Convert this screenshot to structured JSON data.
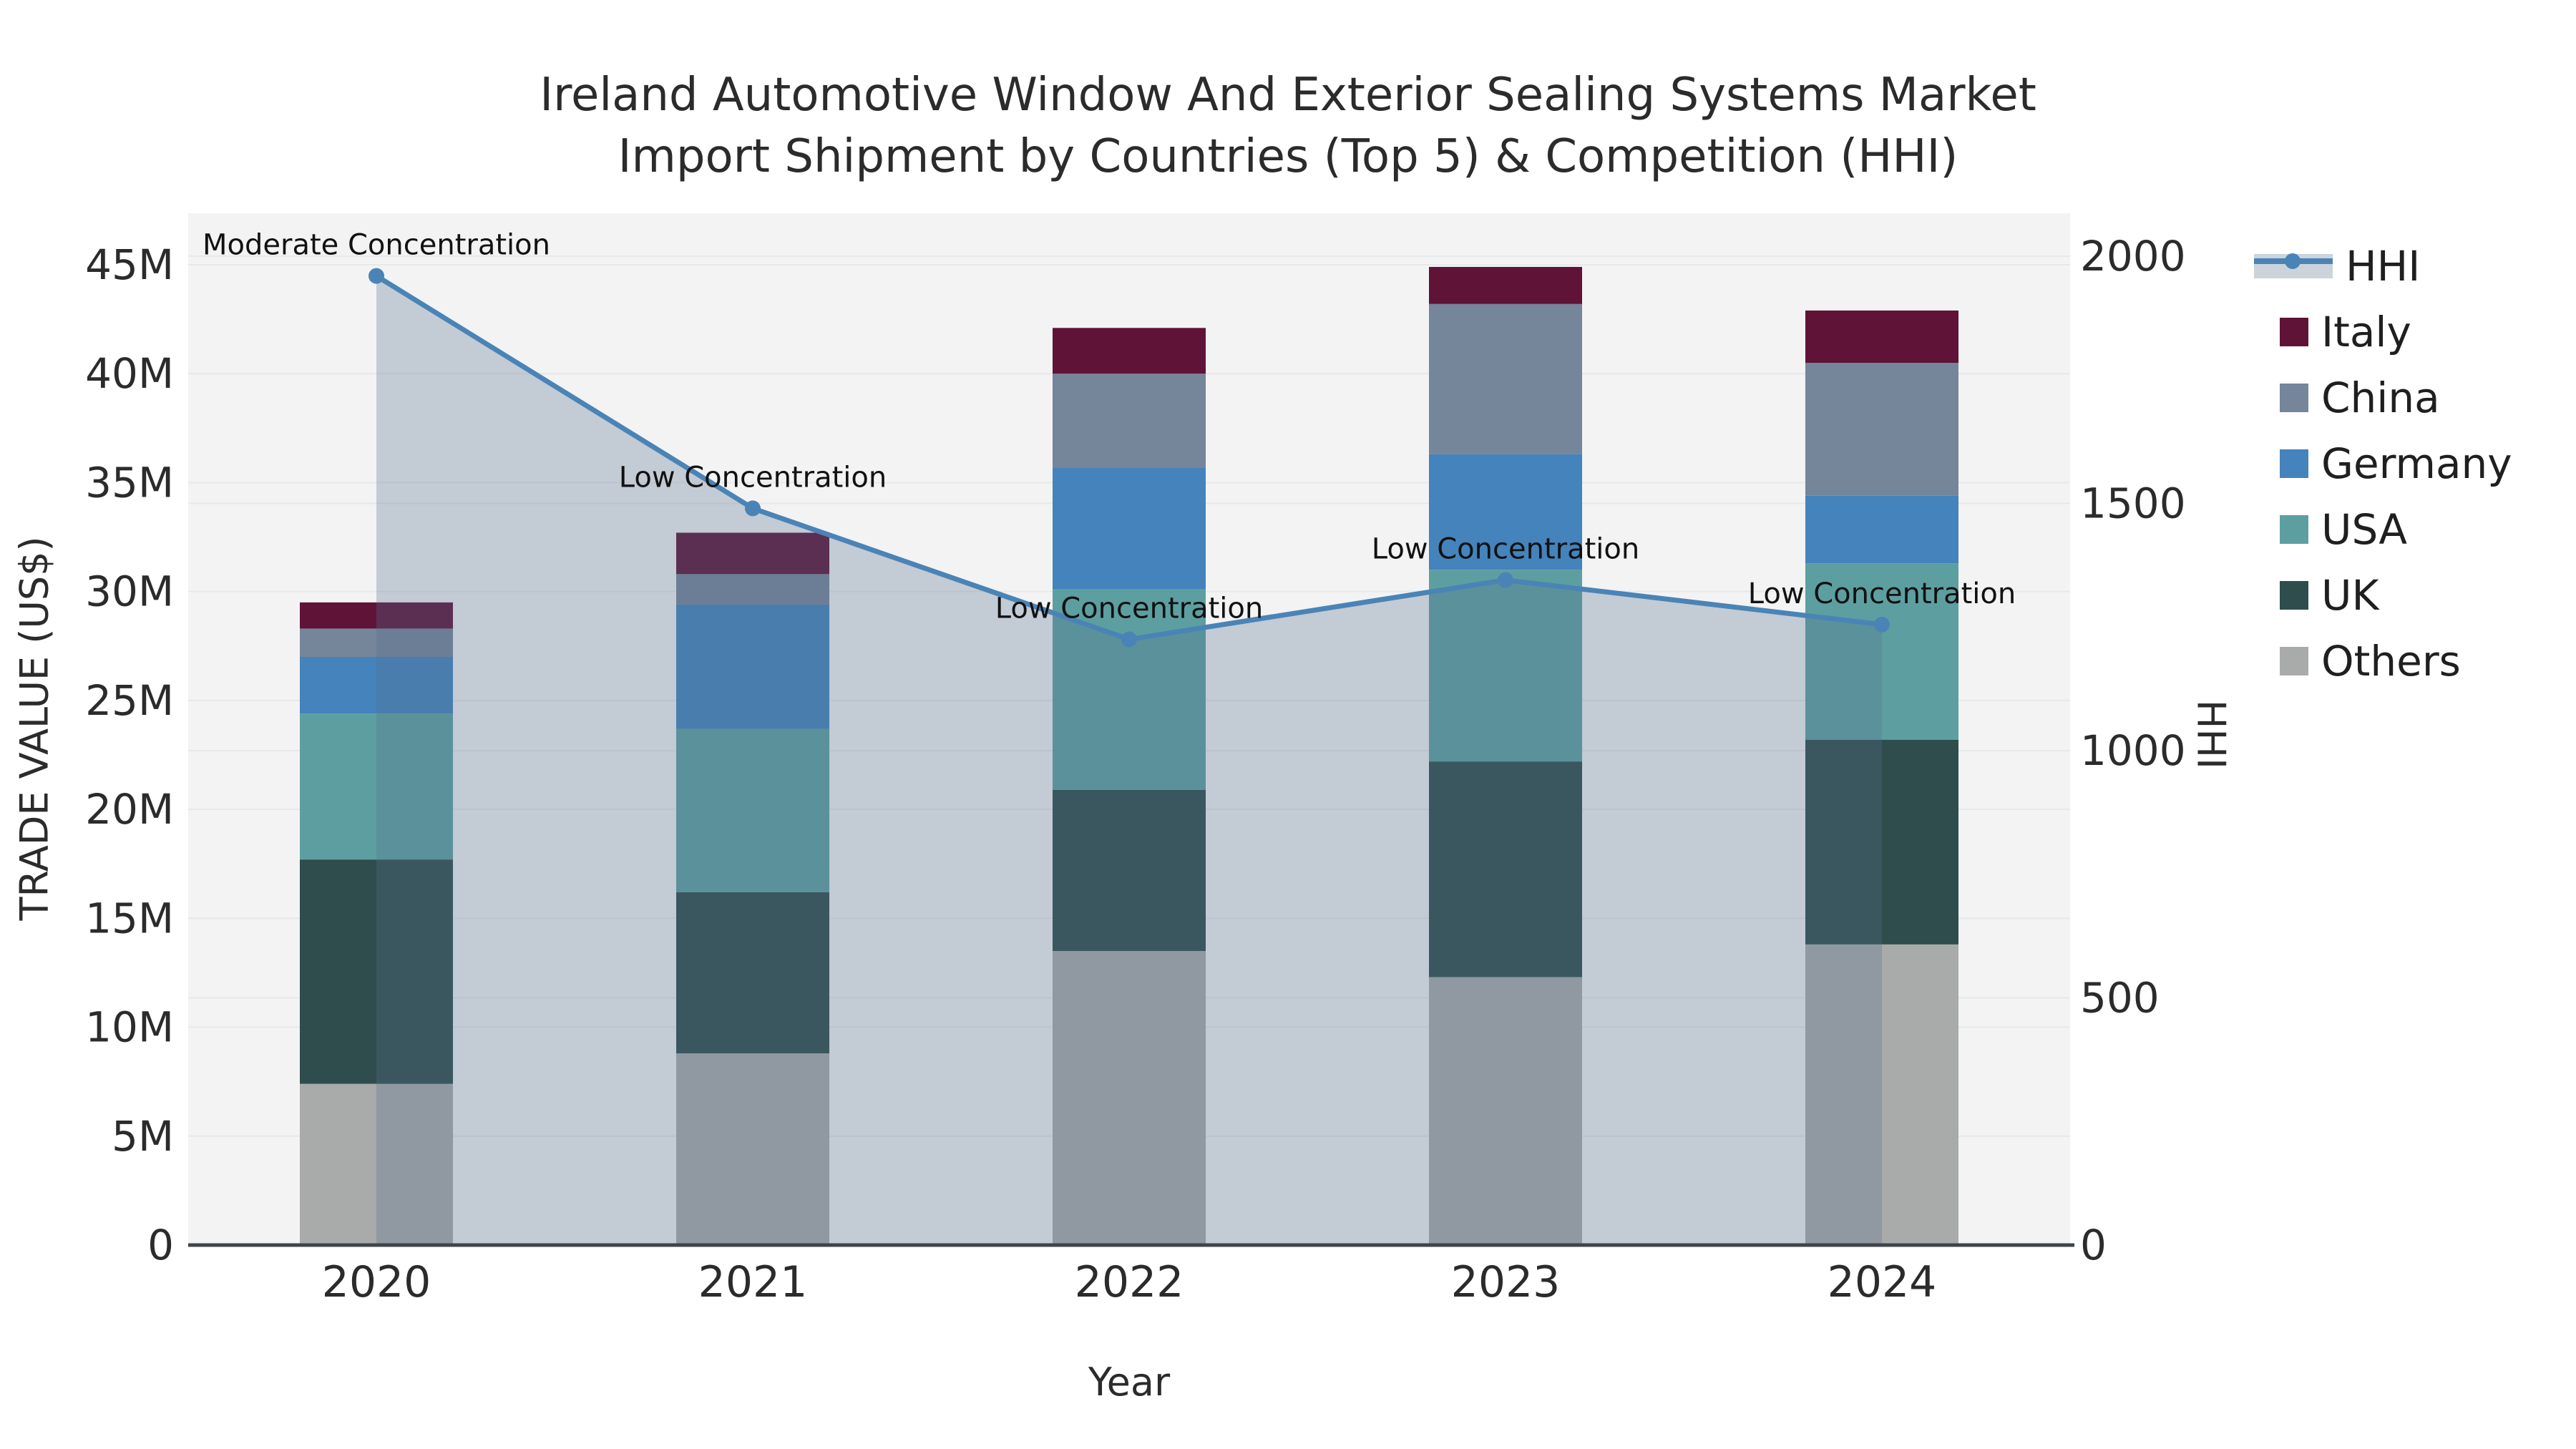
{
  "figure": {
    "title_line1": "Ireland Automotive Window And Exterior Sealing Systems Market",
    "title_line2": "Import Shipment by Countries (Top 5) & Competition (HHI)",
    "x_axis_title": "Year",
    "y_left_axis_title": "TRADE VALUE (US$)",
    "y_right_axis_title": "HHI"
  },
  "legend": {
    "items": [
      "HHI",
      "Italy",
      "China",
      "Germany",
      "USA",
      "UK",
      "Others"
    ]
  },
  "chart_data": {
    "type": "bar",
    "subtype": "stacked-bars-with-line-overlay",
    "categories": [
      "2020",
      "2021",
      "2022",
      "2023",
      "2024"
    ],
    "stack_order_bottom_to_top": [
      "Others",
      "UK",
      "USA",
      "Germany",
      "China",
      "Italy"
    ],
    "series": [
      {
        "name": "Italy",
        "color": "#5e1337",
        "values": [
          1.2,
          1.9,
          2.1,
          1.7,
          2.4
        ]
      },
      {
        "name": "China",
        "color": "#75859a",
        "values": [
          1.3,
          1.4,
          4.3,
          6.9,
          6.1
        ]
      },
      {
        "name": "Germany",
        "color": "#4483bb",
        "values": [
          2.6,
          5.7,
          5.6,
          5.3,
          3.1
        ]
      },
      {
        "name": "USA",
        "color": "#5d9fa0",
        "values": [
          6.7,
          7.5,
          9.2,
          8.8,
          8.1
        ]
      },
      {
        "name": "UK",
        "color": "#2e4d4c",
        "values": [
          10.3,
          7.4,
          7.4,
          9.9,
          9.4
        ]
      },
      {
        "name": "Others",
        "color": "#a9abaa",
        "values": [
          7.4,
          8.8,
          13.5,
          12.3,
          13.8
        ]
      }
    ],
    "bar_totals_millions": [
      29.5,
      32.7,
      42.1,
      44.9,
      42.9
    ],
    "line_series": {
      "name": "HHI",
      "color": "#4a84b6",
      "area_fill": "rgba(86,111,141,0.30)",
      "values": [
        1960,
        1490,
        1225,
        1345,
        1255
      ]
    },
    "annotations": [
      "Moderate Concentration",
      "Low Concentration",
      "Low Concentration",
      "Low Concentration",
      "Low Concentration"
    ],
    "xlabel": "Year",
    "ylabel_left": "TRADE VALUE (US$)",
    "ylabel_right": "HHI",
    "y_left_axis": {
      "min": 0,
      "max": 45000000,
      "tick_step": 5000000,
      "tick_labels": [
        "0",
        "5M",
        "10M",
        "15M",
        "20M",
        "25M",
        "30M",
        "35M",
        "40M",
        "45M"
      ]
    },
    "y_right_axis": {
      "min": 0,
      "max": 2000,
      "tick_step": 500,
      "tick_labels": [
        "0",
        "500",
        "1000",
        "1500",
        "2000"
      ]
    },
    "grid": true,
    "legend_position": "right",
    "colors": {
      "plot_background": "#f3f3f4",
      "gridline": "#e7e8ea",
      "axis_line": "#3f4448",
      "text": "#2b2b2b"
    }
  }
}
